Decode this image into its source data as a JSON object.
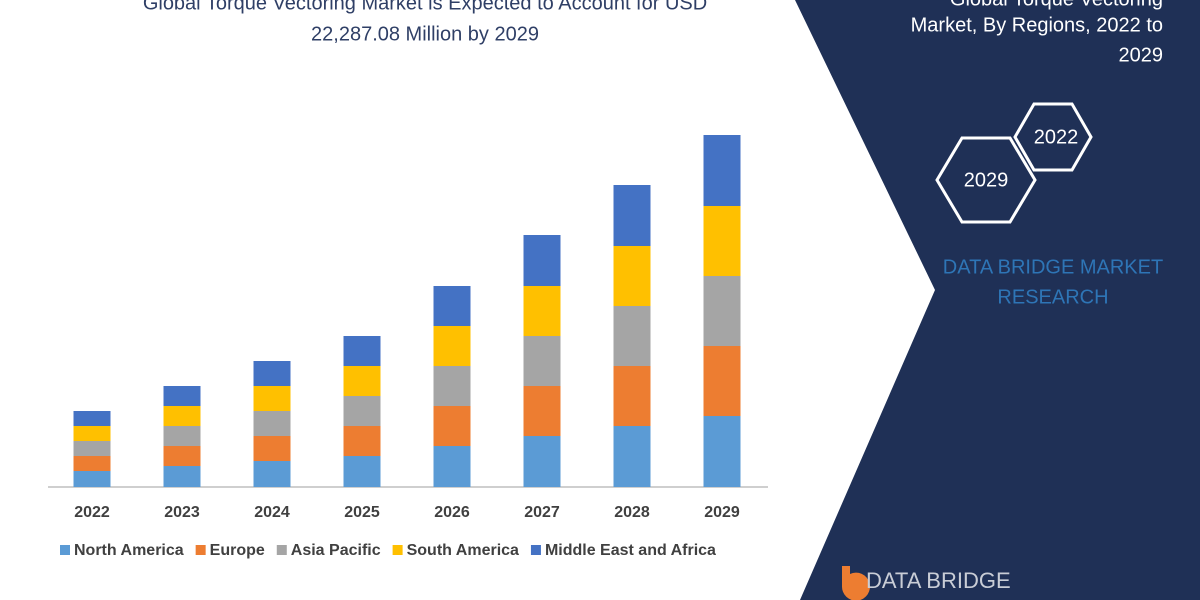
{
  "chart_data": {
    "type": "bar",
    "stacked": true,
    "title": [
      "Global Torque Vectoring Market is Expected to Account for USD",
      "22,287.08 Million by 2029"
    ],
    "categories": [
      "2022",
      "2023",
      "2024",
      "2025",
      "2026",
      "2027",
      "2028",
      "2029"
    ],
    "series": [
      {
        "name": "North America",
        "color": "#5b9bd5",
        "values": [
          16,
          21,
          26,
          31,
          41,
          51,
          61,
          71
        ]
      },
      {
        "name": "Europe",
        "color": "#ed7d31",
        "values": [
          15,
          20,
          25,
          30,
          40,
          50,
          60,
          70
        ]
      },
      {
        "name": "Asia Pacific",
        "color": "#a5a5a5",
        "values": [
          15,
          20,
          25,
          30,
          40,
          50,
          60,
          70
        ]
      },
      {
        "name": "South America",
        "color": "#ffc000",
        "values": [
          15,
          20,
          25,
          30,
          40,
          50,
          60,
          70
        ]
      },
      {
        "name": "Middle East and Africa",
        "color": "#4472c4",
        "values": [
          15,
          20,
          25,
          30,
          40,
          51,
          61,
          71
        ]
      }
    ]
  },
  "panel": {
    "title": [
      "Global Torque Vectoring",
      "Market, By Regions, 2022 to",
      "2029"
    ],
    "hexagons": [
      "2022",
      "2029"
    ],
    "brand": [
      "DATA BRIDGE MARKET",
      "RESEARCH"
    ]
  },
  "logo": {
    "text": "DATA BRIDGE"
  }
}
